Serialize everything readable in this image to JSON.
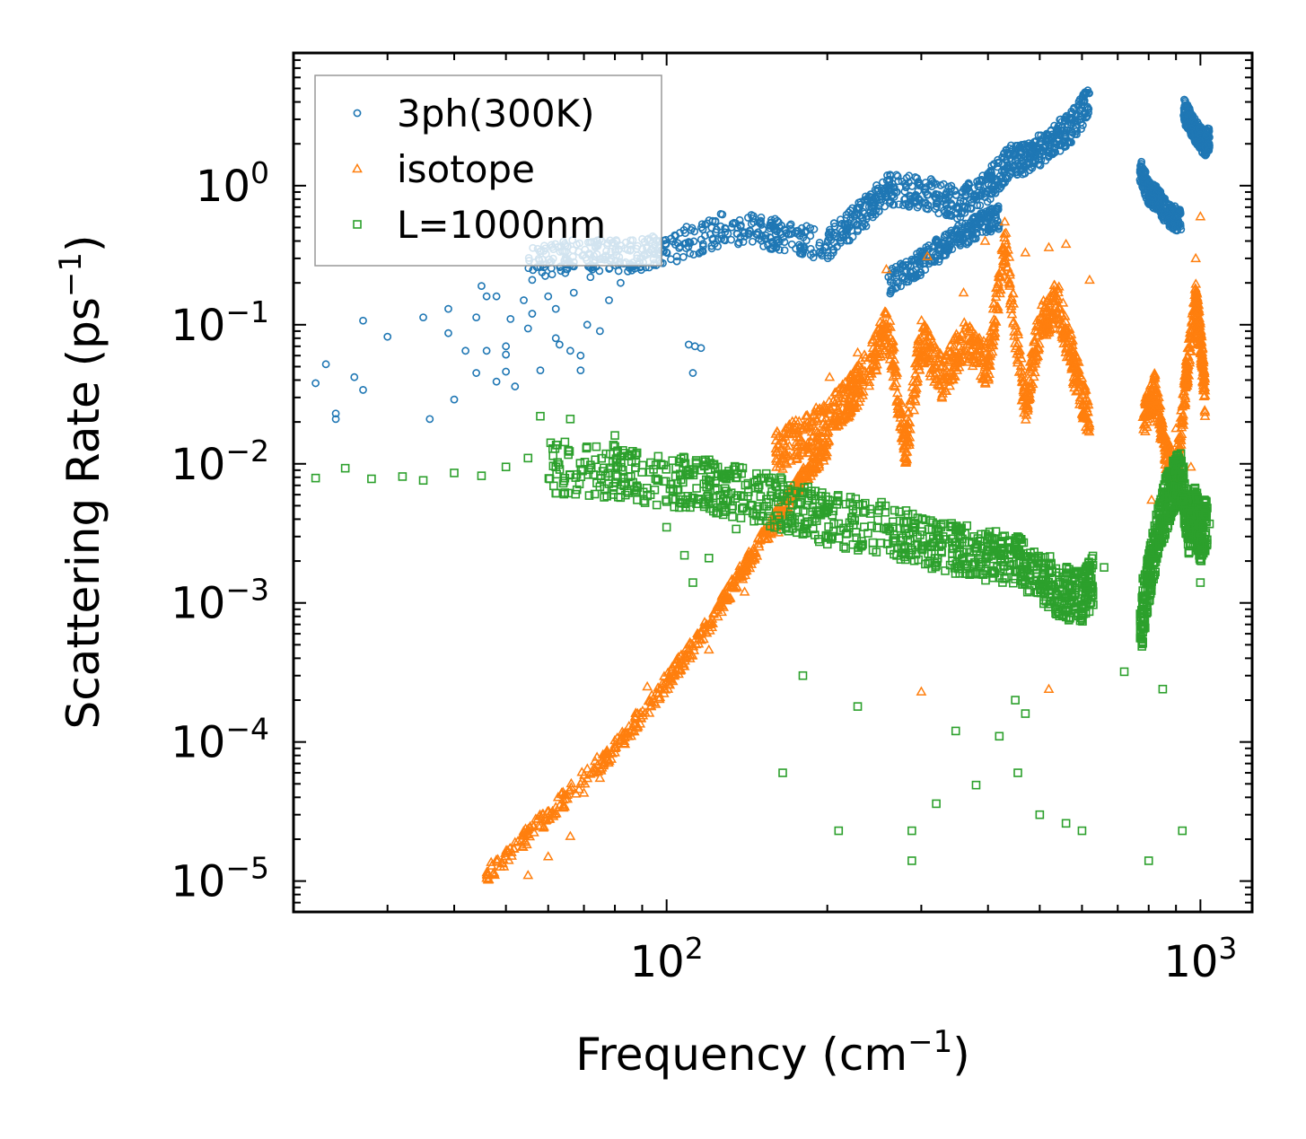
{
  "chart_data": {
    "type": "scatter",
    "xscale": "log",
    "yscale": "log",
    "xlim": [
      20,
      1250
    ],
    "ylim": [
      6e-06,
      9
    ],
    "xlabel": "Frequency (cm",
    "xlabel_exp": "−1",
    "xlabel_close": ")",
    "ylabel": "Scattering Rate (ps",
    "ylabel_exp": "−1",
    "ylabel_close": ")",
    "x_ticks": [
      {
        "value": 100,
        "base": "10",
        "exp": "2"
      },
      {
        "value": 1000,
        "base": "10",
        "exp": "3"
      }
    ],
    "y_ticks": [
      {
        "value": 1,
        "base": "10",
        "exp": "0"
      },
      {
        "value": 0.1,
        "base": "10",
        "exp": "−1"
      },
      {
        "value": 0.01,
        "base": "10",
        "exp": "−2"
      },
      {
        "value": 0.001,
        "base": "10",
        "exp": "−3"
      },
      {
        "value": 0.0001,
        "base": "10",
        "exp": "−4"
      },
      {
        "value": 1e-05,
        "base": "10",
        "exp": "−5"
      }
    ],
    "legend": {
      "position": "top-left",
      "entries": [
        {
          "label": "3ph(300K)",
          "series": "3ph"
        },
        {
          "label": "isotope",
          "series": "isotope"
        },
        {
          "label": "L=1000nm",
          "series": "boundary"
        }
      ]
    },
    "series": [
      {
        "name": "3ph(300K)",
        "id": "3ph",
        "marker": "circle",
        "color": "#1f77b4",
        "points": [
          [
            22,
            0.038
          ],
          [
            23,
            0.052
          ],
          [
            24,
            0.023
          ],
          [
            24,
            0.021
          ],
          [
            26,
            0.042
          ],
          [
            27,
            0.034
          ],
          [
            27,
            0.107
          ],
          [
            30,
            0.082
          ],
          [
            35,
            0.113
          ],
          [
            36,
            0.021
          ],
          [
            39,
            0.087
          ],
          [
            39,
            0.13
          ],
          [
            40,
            0.029
          ],
          [
            42,
            0.065
          ],
          [
            44,
            0.045
          ],
          [
            44,
            0.113
          ],
          [
            45,
            0.19
          ],
          [
            46,
            0.16
          ],
          [
            46,
            0.065
          ],
          [
            48,
            0.039
          ],
          [
            48,
            0.16
          ],
          [
            50,
            0.07
          ],
          [
            50,
            0.061
          ],
          [
            50,
            0.046
          ],
          [
            51,
            0.11
          ],
          [
            52,
            0.036
          ],
          [
            54,
            0.15
          ],
          [
            55,
            0.094
          ],
          [
            56,
            0.12
          ],
          [
            56,
            0.21
          ],
          [
            58,
            0.047
          ],
          [
            58,
            0.26
          ],
          [
            59,
            0.37
          ],
          [
            60,
            0.16
          ],
          [
            62,
            0.13
          ],
          [
            62,
            0.08
          ],
          [
            63,
            0.072
          ],
          [
            65,
            0.27
          ],
          [
            66,
            0.065
          ],
          [
            67,
            0.17
          ],
          [
            69,
            0.047
          ],
          [
            69,
            0.06
          ],
          [
            71,
            0.1
          ],
          [
            72,
            0.22
          ],
          [
            75,
            0.09
          ],
          [
            78,
            0.15
          ],
          [
            82,
            0.2
          ],
          [
            88,
            0.3
          ],
          [
            110,
            0.072
          ],
          [
            113,
            0.07
          ],
          [
            116,
            0.068
          ],
          [
            112,
            0.045
          ]
        ]
      },
      {
        "name": "isotope",
        "id": "isotope",
        "marker": "triangle",
        "color": "#ff7f0e",
        "points": [
          [
            46,
            1.05e-05
          ],
          [
            50,
            1.5e-05
          ],
          [
            52,
            1.9e-05
          ],
          [
            55,
            1.1e-05
          ],
          [
            58,
            2.5e-05
          ],
          [
            60,
            1.5e-05
          ],
          [
            62,
            3.4e-05
          ],
          [
            66,
            2.1e-05
          ],
          [
            70,
            4.3e-05
          ],
          [
            75,
            5.5e-05
          ],
          [
            80,
            8.4e-05
          ],
          [
            92,
            0.00025
          ],
          [
            108,
            0.00035
          ],
          [
            120,
            0.00046
          ],
          [
            140,
            0.0012
          ],
          [
            162,
            0.0032
          ],
          [
            185,
            0.012
          ],
          [
            202,
            0.042
          ],
          [
            228,
            0.063
          ],
          [
            258,
            0.25
          ],
          [
            308,
            0.31
          ],
          [
            360,
            0.17
          ],
          [
            395,
            0.4
          ],
          [
            430,
            0.55
          ],
          [
            470,
            0.33
          ],
          [
            520,
            0.36
          ],
          [
            560,
            0.38
          ],
          [
            620,
            0.21
          ],
          [
            810,
            0.0055
          ],
          [
            830,
            0.02
          ],
          [
            900,
            0.018
          ],
          [
            940,
            0.055
          ],
          [
            980,
            0.3
          ],
          [
            1000,
            0.6
          ],
          [
            1020,
            0.022
          ],
          [
            960,
            0.0095
          ],
          [
            300,
            0.00023
          ],
          [
            520,
            0.00024
          ]
        ]
      },
      {
        "name": "L=1000nm",
        "id": "boundary",
        "marker": "square",
        "color": "#2ca02c",
        "points": [
          [
            22,
            0.0079
          ],
          [
            25,
            0.0093
          ],
          [
            28,
            0.0078
          ],
          [
            32,
            0.0081
          ],
          [
            35,
            0.0076
          ],
          [
            40,
            0.0086
          ],
          [
            45,
            0.0082
          ],
          [
            50,
            0.0095
          ],
          [
            55,
            0.011
          ],
          [
            58,
            0.022
          ],
          [
            62,
            0.0095
          ],
          [
            66,
            0.021
          ],
          [
            72,
            0.0098
          ],
          [
            80,
            0.016
          ],
          [
            88,
            0.012
          ],
          [
            95,
            0.0065
          ],
          [
            100,
            0.0035
          ],
          [
            108,
            0.0022
          ],
          [
            112,
            0.0014
          ],
          [
            120,
            0.0021
          ],
          [
            135,
            0.0034
          ],
          [
            165,
            6e-05
          ],
          [
            180,
            0.0003
          ],
          [
            210,
            2.3e-05
          ],
          [
            228,
            0.00018
          ],
          [
            288,
            2.3e-05
          ],
          [
            288,
            1.4e-05
          ],
          [
            320,
            3.6e-05
          ],
          [
            348,
            0.00012
          ],
          [
            380,
            4.9e-05
          ],
          [
            420,
            0.00011
          ],
          [
            455,
            6e-05
          ],
          [
            470,
            0.00016
          ],
          [
            500,
            3e-05
          ],
          [
            560,
            2.6e-05
          ],
          [
            600,
            2.3e-05
          ],
          [
            660,
            0.0018
          ],
          [
            720,
            0.00032
          ],
          [
            780,
            0.0015
          ],
          [
            800,
            1.4e-05
          ],
          [
            850,
            0.00024
          ],
          [
            925,
            2.3e-05
          ],
          [
            1000,
            0.0014
          ],
          [
            1040,
            0.0037
          ],
          [
            620,
            0.0016
          ],
          [
            450,
            0.0002
          ]
        ]
      }
    ],
    "bands": [
      {
        "series": "3ph",
        "points": [
          [
            55,
            0.28
          ],
          [
            70,
            0.32
          ],
          [
            85,
            0.31
          ],
          [
            100,
            0.35
          ],
          [
            130,
            0.5
          ],
          [
            160,
            0.45
          ],
          [
            200,
            0.38
          ],
          [
            230,
            0.6
          ],
          [
            260,
            0.95
          ],
          [
            300,
            0.9
          ],
          [
            350,
            0.75
          ],
          [
            400,
            1.0
          ],
          [
            440,
            1.5
          ],
          [
            480,
            1.6
          ],
          [
            520,
            2.0
          ],
          [
            570,
            2.6
          ],
          [
            620,
            4.0
          ]
        ],
        "spread": 1.7
      },
      {
        "series": "3ph",
        "points": [
          [
            260,
            0.2
          ],
          [
            300,
            0.28
          ],
          [
            340,
            0.4
          ],
          [
            380,
            0.5
          ],
          [
            420,
            0.6
          ]
        ],
        "spread": 1.5
      },
      {
        "series": "3ph",
        "points": [
          [
            770,
            1.3
          ],
          [
            800,
            0.9
          ],
          [
            830,
            0.8
          ],
          [
            870,
            0.62
          ],
          [
            920,
            0.55
          ]
        ],
        "spread": 1.5
      },
      {
        "series": "3ph",
        "points": [
          [
            930,
            3.5
          ],
          [
            960,
            2.8
          ],
          [
            990,
            2.3
          ],
          [
            1020,
            2.0
          ],
          [
            1040,
            2.2
          ]
        ],
        "spread": 1.5
      },
      {
        "series": "isotope",
        "points": [
          [
            46,
            1.1e-05
          ],
          [
            60,
            3e-05
          ],
          [
            80,
            9e-05
          ],
          [
            100,
            0.00027
          ],
          [
            120,
            0.0007
          ],
          [
            140,
            0.0018
          ],
          [
            160,
            0.004
          ],
          [
            180,
            0.008
          ],
          [
            200,
            0.013
          ]
        ],
        "spread": 1.35
      },
      {
        "series": "isotope",
        "points": [
          [
            160,
            0.012
          ],
          [
            180,
            0.016
          ],
          [
            200,
            0.02
          ],
          [
            220,
            0.03
          ],
          [
            240,
            0.05
          ],
          [
            260,
            0.1
          ],
          [
            280,
            0.012
          ],
          [
            300,
            0.08
          ],
          [
            330,
            0.04
          ],
          [
            360,
            0.08
          ],
          [
            400,
            0.05
          ],
          [
            430,
            0.4
          ],
          [
            470,
            0.025
          ],
          [
            500,
            0.1
          ],
          [
            540,
            0.15
          ],
          [
            580,
            0.05
          ],
          [
            620,
            0.02
          ]
        ],
        "spread": 2.0
      },
      {
        "series": "isotope",
        "points": [
          [
            780,
            0.02
          ],
          [
            820,
            0.035
          ],
          [
            860,
            0.012
          ],
          [
            900,
            0.008
          ],
          [
            940,
            0.04
          ],
          [
            980,
            0.15
          ],
          [
            1000,
            0.08
          ],
          [
            1020,
            0.03
          ]
        ],
        "spread": 1.8
      },
      {
        "series": "boundary",
        "points": [
          [
            60,
            0.0095
          ],
          [
            80,
            0.0088
          ],
          [
            100,
            0.0075
          ],
          [
            120,
            0.007
          ],
          [
            140,
            0.006
          ],
          [
            170,
            0.005
          ],
          [
            200,
            0.004
          ],
          [
            250,
            0.0035
          ],
          [
            300,
            0.0028
          ],
          [
            350,
            0.0025
          ],
          [
            400,
            0.0022
          ],
          [
            450,
            0.002
          ],
          [
            500,
            0.0016
          ],
          [
            550,
            0.0012
          ],
          [
            600,
            0.0011
          ],
          [
            630,
            0.0015
          ]
        ],
        "spread": 2.4
      },
      {
        "series": "boundary",
        "points": [
          [
            770,
            0.0006
          ],
          [
            800,
            0.0015
          ],
          [
            830,
            0.003
          ],
          [
            860,
            0.005
          ],
          [
            890,
            0.007
          ],
          [
            920,
            0.008
          ],
          [
            950,
            0.0035
          ],
          [
            980,
            0.0045
          ],
          [
            1000,
            0.003
          ],
          [
            1030,
            0.004
          ]
        ],
        "spread": 2.5
      }
    ]
  }
}
